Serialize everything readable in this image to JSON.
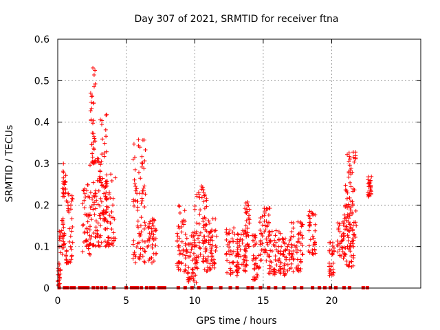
{
  "chart_data": {
    "type": "scatter",
    "title": "Day 307 of 2021, SRMTID for receiver ftna",
    "xlabel": "GPS time / hours",
    "ylabel": "SRMTID / TECUs",
    "xlim": [
      0,
      26.5
    ],
    "ylim": [
      0,
      0.6
    ],
    "xticks": [
      0,
      5,
      10,
      15,
      20
    ],
    "yticks": [
      0,
      0.1,
      0.2,
      0.3,
      0.4,
      0.5,
      0.6
    ],
    "grid": true,
    "marker": "+",
    "color": "#ff0000",
    "zero_markers": {
      "marker": "square",
      "x": [
        0.1,
        0.5,
        0.7,
        1.0,
        1.2,
        1.6,
        1.8,
        2.0,
        2.2,
        2.6,
        2.9,
        3.2,
        3.5,
        4.1,
        5.0,
        5.4,
        5.6,
        5.8,
        6.1,
        6.5,
        6.8,
        7.0,
        7.4,
        7.6,
        7.8,
        8.8,
        9.3,
        9.8,
        10.3,
        11.0,
        11.2,
        11.9,
        12.6,
        13.1,
        13.9,
        14.2,
        14.8,
        15.4,
        15.9,
        16.5,
        17.3,
        17.8,
        18.6,
        19.1,
        19.5,
        19.9,
        20.3,
        20.9,
        21.3,
        22.3,
        22.6
      ]
    },
    "clusters": [
      {
        "x": [
          0.0,
          0.2
        ],
        "y": [
          0.0,
          0.06
        ]
      },
      {
        "x": [
          0.1,
          0.5
        ],
        "y": [
          0.08,
          0.17
        ]
      },
      {
        "x": [
          0.35,
          0.6
        ],
        "y": [
          0.22,
          0.31
        ]
      },
      {
        "x": [
          0.6,
          1.1
        ],
        "y": [
          0.06,
          0.23
        ]
      },
      {
        "x": [
          1.8,
          2.4
        ],
        "y": [
          0.08,
          0.25
        ]
      },
      {
        "x": [
          2.3,
          3.2
        ],
        "y": [
          0.1,
          0.32
        ]
      },
      {
        "x": [
          2.4,
          2.75
        ],
        "y": [
          0.3,
          0.55
        ]
      },
      {
        "x": [
          3.1,
          3.6
        ],
        "y": [
          0.16,
          0.42
        ]
      },
      {
        "x": [
          3.4,
          4.2
        ],
        "y": [
          0.1,
          0.28
        ]
      },
      {
        "x": [
          5.5,
          6.4
        ],
        "y": [
          0.06,
          0.36
        ]
      },
      {
        "x": [
          6.5,
          7.2
        ],
        "y": [
          0.06,
          0.17
        ]
      },
      {
        "x": [
          8.7,
          9.4
        ],
        "y": [
          0.04,
          0.2
        ]
      },
      {
        "x": [
          9.4,
          10.2
        ],
        "y": [
          0.01,
          0.14
        ]
      },
      {
        "x": [
          10.0,
          10.9
        ],
        "y": [
          0.06,
          0.25
        ]
      },
      {
        "x": [
          10.6,
          11.6
        ],
        "y": [
          0.04,
          0.17
        ]
      },
      {
        "x": [
          12.3,
          13.2
        ],
        "y": [
          0.03,
          0.15
        ]
      },
      {
        "x": [
          13.1,
          13.8
        ],
        "y": [
          0.04,
          0.14
        ]
      },
      {
        "x": [
          13.6,
          14.0
        ],
        "y": [
          0.1,
          0.21
        ]
      },
      {
        "x": [
          14.2,
          14.7
        ],
        "y": [
          0.02,
          0.13
        ]
      },
      {
        "x": [
          14.7,
          15.5
        ],
        "y": [
          0.05,
          0.2
        ]
      },
      {
        "x": [
          15.4,
          16.3
        ],
        "y": [
          0.03,
          0.14
        ]
      },
      {
        "x": [
          16.2,
          17.1
        ],
        "y": [
          0.03,
          0.12
        ]
      },
      {
        "x": [
          17.0,
          17.9
        ],
        "y": [
          0.04,
          0.16
        ]
      },
      {
        "x": [
          18.3,
          18.8
        ],
        "y": [
          0.08,
          0.19
        ]
      },
      {
        "x": [
          19.8,
          20.2
        ],
        "y": [
          0.03,
          0.11
        ]
      },
      {
        "x": [
          20.4,
          21.0
        ],
        "y": [
          0.07,
          0.16
        ]
      },
      {
        "x": [
          20.9,
          21.6
        ],
        "y": [
          0.05,
          0.2
        ]
      },
      {
        "x": [
          21.0,
          21.8
        ],
        "y": [
          0.12,
          0.33
        ]
      },
      {
        "x": [
          22.6,
          22.9
        ],
        "y": [
          0.22,
          0.27
        ]
      }
    ]
  }
}
